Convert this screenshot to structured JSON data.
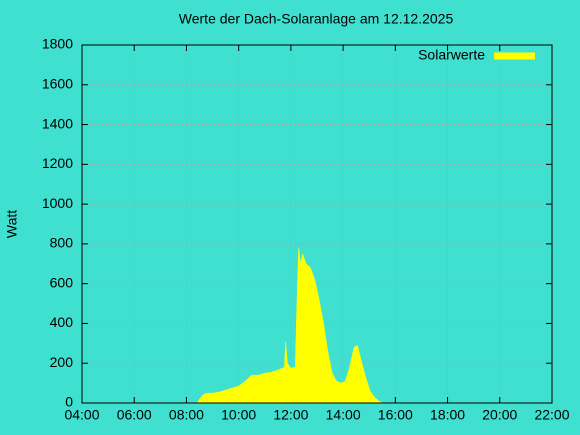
{
  "chart_data": {
    "type": "area",
    "title": "Werte der Dach-Solaranlage am 12.12.2025",
    "y_label": "Watt",
    "x": [
      "08:25",
      "08:30",
      "08:40",
      "08:50",
      "09:00",
      "09:15",
      "09:30",
      "09:45",
      "10:00",
      "10:15",
      "10:30",
      "10:45",
      "11:00",
      "11:15",
      "11:30",
      "11:45",
      "11:48",
      "11:52",
      "12:00",
      "12:10",
      "12:15",
      "12:18",
      "12:22",
      "12:27",
      "12:35",
      "12:45",
      "12:55",
      "13:05",
      "13:15",
      "13:25",
      "13:35",
      "13:45",
      "13:55",
      "14:05",
      "14:15",
      "14:25",
      "14:33",
      "14:42",
      "14:52",
      "15:02",
      "15:12",
      "15:22",
      "15:32"
    ],
    "series": [
      {
        "name": "Solarwerte",
        "color": "#ffff00",
        "values": [
          0,
          20,
          45,
          50,
          50,
          55,
          65,
          75,
          85,
          110,
          140,
          140,
          150,
          155,
          165,
          180,
          310,
          200,
          175,
          180,
          600,
          780,
          700,
          750,
          700,
          680,
          620,
          520,
          400,
          260,
          150,
          110,
          100,
          110,
          180,
          280,
          290,
          210,
          130,
          60,
          30,
          10,
          0
        ]
      }
    ],
    "xlim": [
      "04:00",
      "22:00"
    ],
    "xticks": [
      "04:00",
      "06:00",
      "08:00",
      "10:00",
      "12:00",
      "14:00",
      "16:00",
      "18:00",
      "20:00",
      "22:00"
    ],
    "ylim": [
      0,
      1800
    ],
    "yticks": [
      0,
      200,
      400,
      600,
      800,
      1000,
      1200,
      1400,
      1600,
      1800
    ],
    "grid": true,
    "legend": "top-right"
  }
}
